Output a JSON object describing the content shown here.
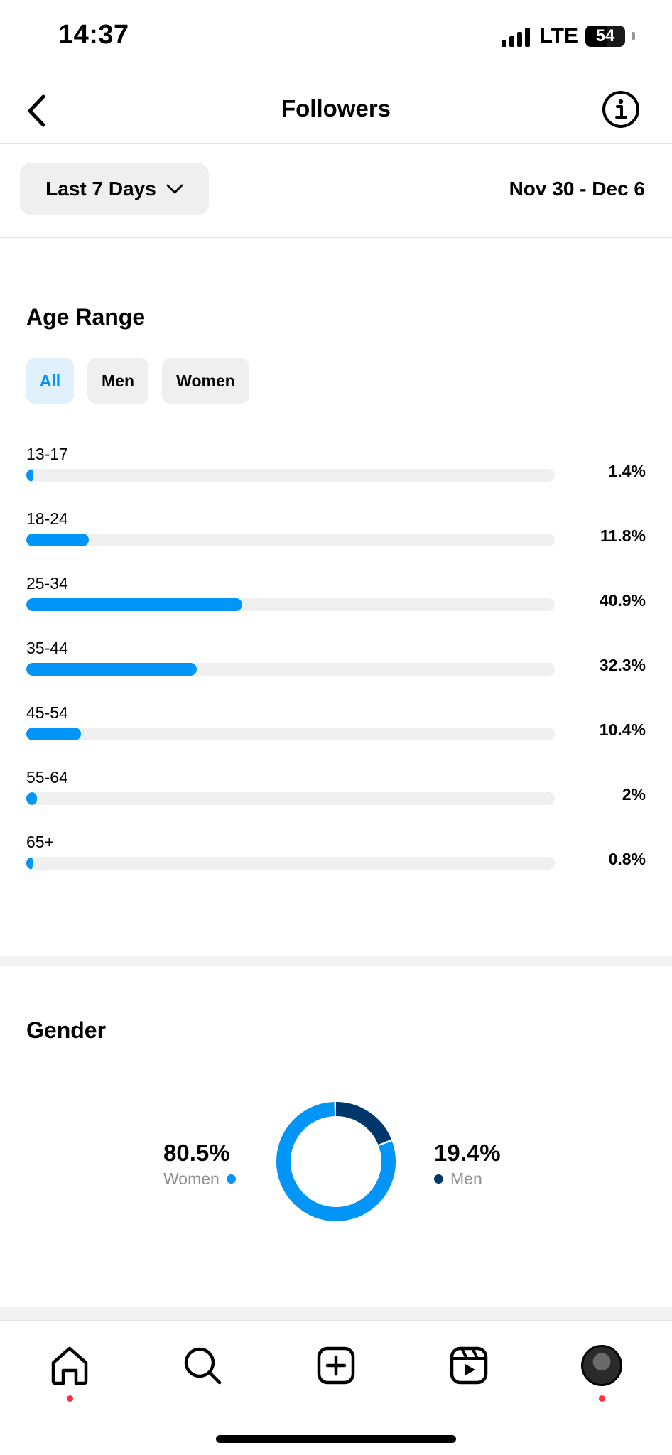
{
  "status_bar": {
    "time": "14:37",
    "network": "LTE",
    "battery": "54"
  },
  "header": {
    "title": "Followers"
  },
  "filter": {
    "range_label": "Last 7 Days",
    "date_range": "Nov 30 - Dec 6"
  },
  "age_section": {
    "title": "Age Range",
    "segments": [
      "All",
      "Men",
      "Women"
    ],
    "active_segment": "All",
    "rows": [
      {
        "label": "13-17",
        "value_text": "1.4%",
        "value": 1.4
      },
      {
        "label": "18-24",
        "value_text": "11.8%",
        "value": 11.8
      },
      {
        "label": "25-34",
        "value_text": "40.9%",
        "value": 40.9
      },
      {
        "label": "35-44",
        "value_text": "32.3%",
        "value": 32.3
      },
      {
        "label": "45-54",
        "value_text": "10.4%",
        "value": 10.4
      },
      {
        "label": "55-64",
        "value_text": "2%",
        "value": 2
      },
      {
        "label": "65+",
        "value_text": "0.8%",
        "value": 0.8
      }
    ]
  },
  "gender_section": {
    "title": "Gender",
    "women": {
      "value_text": "80.5%",
      "label": "Women",
      "value": 80.5
    },
    "men": {
      "value_text": "19.4%",
      "label": "Men",
      "value": 19.4
    }
  },
  "colors": {
    "accent": "#0095f6",
    "dark_blue": "#00376b",
    "track": "#efefef",
    "notification": "#ff3040"
  },
  "tab_bar": {
    "items": [
      "home-icon",
      "search-icon",
      "create-icon",
      "reels-icon",
      "profile-avatar"
    ]
  }
}
